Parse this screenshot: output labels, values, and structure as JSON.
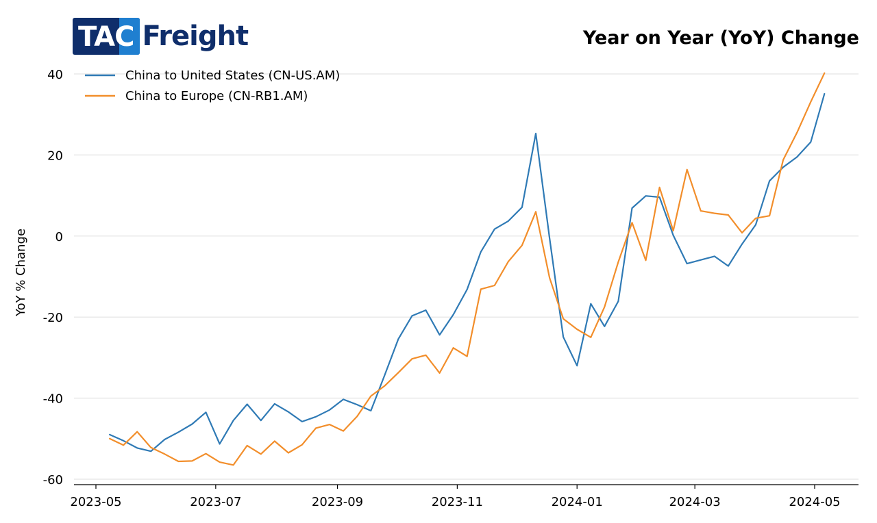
{
  "logo": {
    "part1": "TAC",
    "part2": "Freight"
  },
  "chart_data": {
    "type": "line",
    "title": "Year on Year (YoY) Change",
    "ylabel": "YoY % Change",
    "xlabel": "",
    "ylim": [
      -62,
      42
    ],
    "yticks": [
      40,
      20,
      0,
      -20,
      -40,
      -60
    ],
    "xticks": [
      "2023-05",
      "2023-07",
      "2023-09",
      "2023-11",
      "2024-01",
      "2024-03",
      "2024-05"
    ],
    "grid": "horizontal",
    "legend_position": "top-left",
    "x": [
      "2023-05-08",
      "2023-05-15",
      "2023-05-22",
      "2023-05-29",
      "2023-06-05",
      "2023-06-12",
      "2023-06-19",
      "2023-06-26",
      "2023-07-03",
      "2023-07-10",
      "2023-07-17",
      "2023-07-24",
      "2023-07-31",
      "2023-08-07",
      "2023-08-14",
      "2023-08-21",
      "2023-08-28",
      "2023-09-04",
      "2023-09-11",
      "2023-09-18",
      "2023-09-25",
      "2023-10-02",
      "2023-10-09",
      "2023-10-16",
      "2023-10-23",
      "2023-10-30",
      "2023-11-06",
      "2023-11-13",
      "2023-11-20",
      "2023-11-27",
      "2023-12-04",
      "2023-12-11",
      "2023-12-18",
      "2023-12-25",
      "2024-01-01",
      "2024-01-08",
      "2024-01-15",
      "2024-01-22",
      "2024-01-29",
      "2024-02-05",
      "2024-02-12",
      "2024-02-19",
      "2024-02-26",
      "2024-03-04",
      "2024-03-11",
      "2024-03-18",
      "2024-03-25",
      "2024-04-01",
      "2024-04-08",
      "2024-04-15",
      "2024-04-22",
      "2024-04-29",
      "2024-05-06"
    ],
    "series": [
      {
        "name": "China to United States (CN-US.AM)",
        "color": "#2f7ab5",
        "values": [
          -49,
          -50.5,
          -52.3,
          -53.1,
          -50.2,
          -48.4,
          -46.4,
          -43.5,
          -51.3,
          -45.5,
          -41.5,
          -45.5,
          -41.4,
          -43.4,
          -45.8,
          -44.6,
          -42.9,
          -40.3,
          -41.6,
          -43.1,
          -34.4,
          -25.4,
          -19.7,
          -18.3,
          -24.4,
          -19.4,
          -13.2,
          -3.9,
          1.7,
          3.7,
          7.1,
          25.3,
          -0.5,
          -24.9,
          -32,
          -16.7,
          -22.3,
          -16.1,
          6.9,
          9.9,
          9.6,
          0.2,
          -6.8,
          -5.9,
          -5,
          -7.4,
          -2,
          2.8,
          13.6,
          17,
          19.5,
          23.2,
          35.1
        ]
      },
      {
        "name": "China to Europe (CN-RB1.AM)",
        "color": "#f28e2b",
        "values": [
          -50,
          -51.6,
          -48.3,
          -52.2,
          -53.8,
          -55.6,
          -55.5,
          -53.7,
          -55.8,
          -56.5,
          -51.7,
          -53.8,
          -50.6,
          -53.5,
          -51.5,
          -47.4,
          -46.5,
          -48.1,
          -44.5,
          -39.5,
          -37,
          -33.7,
          -30.3,
          -29.4,
          -33.8,
          -27.6,
          -29.7,
          -13.1,
          -12.2,
          -6.3,
          -2.3,
          6,
          -10.3,
          -20.4,
          -23,
          -25,
          -17.5,
          -6.4,
          3.3,
          -6,
          12,
          1.3,
          16.4,
          6.2,
          5.6,
          5.2,
          0.8,
          4.4,
          5,
          18.8,
          25.5,
          33.1,
          40.2
        ]
      }
    ]
  }
}
